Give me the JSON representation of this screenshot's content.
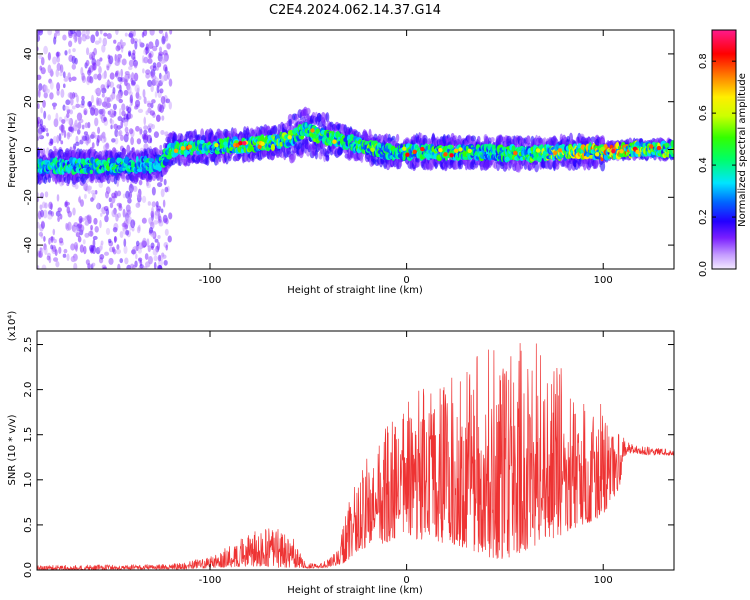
{
  "figure": {
    "title": "C2E4.2024.062.14.37.G14"
  },
  "chart_data": [
    {
      "type": "heatmap",
      "xlabel": "Height of straight line (km)",
      "ylabel": "Frequency (Hz)",
      "xlim": [
        -188,
        136
      ],
      "ylim": [
        -50,
        50
      ],
      "xticks": [
        -100,
        0,
        100
      ],
      "yticks": [
        -40,
        -20,
        0,
        20,
        40
      ],
      "colorbar": {
        "label": "Normalized spectral amplitude",
        "range": [
          0.0,
          0.92
        ],
        "ticks": [
          0.0,
          0.2,
          0.4,
          0.6,
          0.8
        ]
      },
      "ridge": {
        "height_km": [
          -188,
          -150,
          -125,
          -120,
          -100,
          -80,
          -60,
          -52,
          -45,
          -30,
          -20,
          -10,
          0,
          20,
          40,
          60,
          80,
          100,
          115,
          136
        ],
        "frequency_hz": [
          -7,
          -7,
          -6,
          0,
          1,
          2,
          4,
          8,
          6,
          3,
          1,
          -1,
          -1,
          -1,
          -1,
          -2,
          -1,
          -1,
          0,
          0
        ],
        "peak_amplitude": [
          0.45,
          0.5,
          0.45,
          0.5,
          0.5,
          0.55,
          0.6,
          0.5,
          0.55,
          0.5,
          0.6,
          0.5,
          0.5,
          0.55,
          0.5,
          0.55,
          0.7,
          0.85,
          0.8,
          0.6
        ]
      },
      "scattered_noise_region_km": [
        -188,
        -120
      ]
    },
    {
      "type": "line",
      "xlabel": "Height of straight line (km)",
      "ylabel": "SNR (10 * v/v)",
      "y_multiplier": "(x10⁴)",
      "xlim": [
        -188,
        136
      ],
      "ylim": [
        0,
        2.65
      ],
      "xticks": [
        -100,
        0,
        100
      ],
      "yticks": [
        0.0,
        0.5,
        1.0,
        1.5,
        2.0,
        2.5
      ],
      "series": [
        {
          "color": "#ee3333",
          "envelope": {
            "height_km": [
              -188,
              -160,
              -130,
              -115,
              -100,
              -90,
              -80,
              -70,
              -60,
              -52,
              -45,
              -40,
              -35,
              -30,
              -25,
              -20,
              -10,
              0,
              10,
              20,
              30,
              40,
              50,
              60,
              70,
              80,
              90,
              100,
              108,
              112,
              120,
              136
            ],
            "max": [
              0.05,
              0.06,
              0.06,
              0.08,
              0.15,
              0.28,
              0.42,
              0.47,
              0.46,
              0.1,
              0.06,
              0.12,
              0.22,
              0.75,
              1.05,
              1.25,
              1.6,
              2.0,
              2.05,
              2.2,
              2.35,
              2.45,
              2.5,
              2.62,
              2.5,
              2.2,
              1.95,
              1.85,
              1.55,
              1.42,
              1.38,
              1.33
            ],
            "min": [
              0.0,
              0.0,
              0.01,
              0.01,
              0.02,
              0.03,
              0.04,
              0.03,
              0.02,
              0.02,
              0.02,
              0.03,
              0.05,
              0.1,
              0.2,
              0.25,
              0.3,
              0.35,
              0.3,
              0.3,
              0.25,
              0.15,
              0.1,
              0.2,
              0.3,
              0.4,
              0.5,
              0.6,
              0.9,
              1.3,
              1.28,
              1.27
            ]
          }
        }
      ]
    }
  ]
}
